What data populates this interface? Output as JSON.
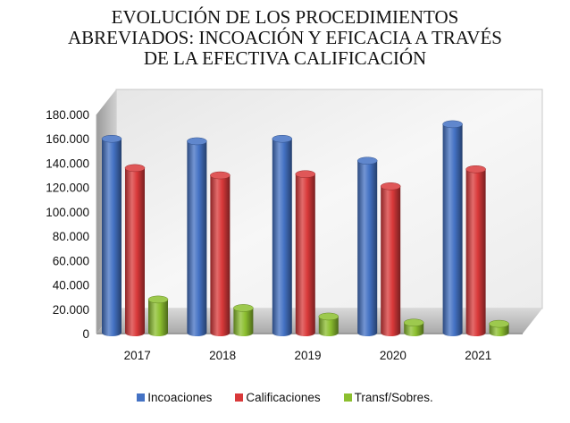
{
  "chart_data": {
    "type": "bar",
    "title": "EVOLUCIÓN DE LOS PROCEDIMIENTOS\nABREVIADOS: INCOACIÓN Y EFICACIA A TRAVÉS\nDE LA EFECTIVA CALIFICACIÓN",
    "categories": [
      "2017",
      "2018",
      "2019",
      "2020",
      "2021"
    ],
    "series": [
      {
        "name": "Incoaciones",
        "values": [
          160000,
          158000,
          160000,
          142000,
          172000
        ],
        "color": "#4472C4"
      },
      {
        "name": "Calificaciones",
        "values": [
          136000,
          130000,
          131000,
          121000,
          135000
        ],
        "color": "#D9393A"
      },
      {
        "name": "Transf/Sobres.",
        "values": [
          28000,
          21000,
          14000,
          9000,
          8000
        ],
        "color": "#8CBF2F"
      }
    ],
    "ylim": [
      0,
      180000
    ],
    "yticks": [
      "0",
      "20.000",
      "40.000",
      "60.000",
      "80.000",
      "100.000",
      "120.000",
      "140.000",
      "160.000",
      "180.000"
    ],
    "grid": false,
    "legend_position": "bottom",
    "style": "3d-cylinder"
  }
}
